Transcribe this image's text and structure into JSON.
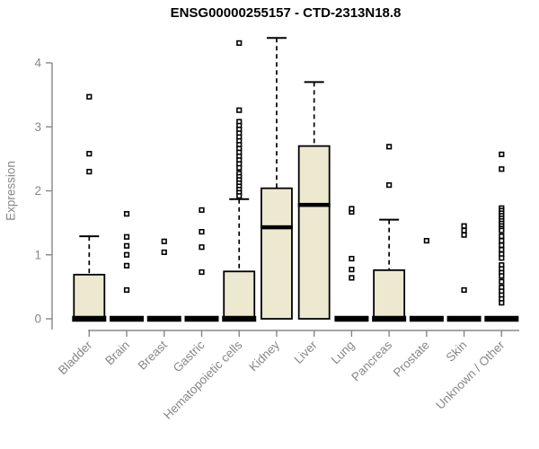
{
  "chart_data": {
    "type": "boxplot",
    "title": "ENSG00000255157 - CTD-2313N18.8",
    "ylabel": "Expression",
    "xlabel": "",
    "ylim": [
      0,
      4.4
    ],
    "yticks": [
      0,
      1,
      2,
      3,
      4
    ],
    "grid": false,
    "legend": false,
    "colors": {
      "background": "#ffffff",
      "box_fill": "#ede8d0",
      "box_stroke": "#000000",
      "median": "#000000",
      "whisker": "#000000",
      "outlier_stroke": "#000000",
      "outlier_fill": "#ffffff",
      "axis": "#878787",
      "tick_label": "#878787",
      "title": "#000000"
    },
    "categories": [
      "Bladder",
      "Brain",
      "Breast",
      "Gastric",
      "Hematopoietic cells",
      "Kidney",
      "Liver",
      "Lung",
      "Pancreas",
      "Prostate",
      "Skin",
      "Unknown / Other"
    ],
    "boxes": [
      {
        "category": "Bladder",
        "q1": 0,
        "median": 0,
        "q3": 0.69,
        "whisker_low": 0,
        "whisker_high": 1.29,
        "outliers": [
          2.3,
          2.58,
          3.47
        ]
      },
      {
        "category": "Brain",
        "q1": 0,
        "median": 0,
        "q3": 0,
        "whisker_low": 0,
        "whisker_high": 0,
        "outliers": [
          0.45,
          0.83,
          1.0,
          1.14,
          1.28,
          1.64
        ]
      },
      {
        "category": "Breast",
        "q1": 0,
        "median": 0,
        "q3": 0,
        "whisker_low": 0,
        "whisker_high": 0,
        "outliers": [
          1.04,
          1.21
        ]
      },
      {
        "category": "Gastric",
        "q1": 0,
        "median": 0,
        "q3": 0,
        "whisker_low": 0,
        "whisker_high": 0,
        "outliers": [
          0.73,
          1.12,
          1.36,
          1.7
        ]
      },
      {
        "category": "Hematopoietic cells",
        "q1": 0,
        "median": 0,
        "q3": 0.74,
        "whisker_low": 0,
        "whisker_high": 1.87,
        "outliers": [
          4.31,
          3.26,
          3.08,
          3.02,
          2.96,
          2.9,
          2.84,
          2.78,
          2.72,
          2.66,
          2.6,
          2.54,
          2.48,
          2.42,
          2.36,
          2.27,
          2.22,
          2.17,
          2.12,
          2.07,
          2.02,
          1.97,
          1.92
        ]
      },
      {
        "category": "Kidney",
        "q1": 0,
        "median": 1.43,
        "q3": 2.04,
        "whisker_low": 0,
        "whisker_high": 4.39,
        "outliers": []
      },
      {
        "category": "Liver",
        "q1": 0,
        "median": 1.78,
        "q3": 2.7,
        "whisker_low": 0,
        "whisker_high": 3.7,
        "outliers": []
      },
      {
        "category": "Lung",
        "q1": 0,
        "median": 0,
        "q3": 0,
        "whisker_low": 0,
        "whisker_high": 0,
        "outliers": [
          0.64,
          0.77,
          0.94,
          1.67,
          1.72
        ]
      },
      {
        "category": "Pancreas",
        "q1": 0,
        "median": 0,
        "q3": 0.76,
        "whisker_low": 0,
        "whisker_high": 1.55,
        "outliers": [
          2.09,
          2.69
        ]
      },
      {
        "category": "Prostate",
        "q1": 0,
        "median": 0,
        "q3": 0,
        "whisker_low": 0,
        "whisker_high": 0,
        "outliers": [
          1.22
        ]
      },
      {
        "category": "Skin",
        "q1": 0,
        "median": 0,
        "q3": 0,
        "whisker_low": 0,
        "whisker_high": 0,
        "outliers": [
          0.45,
          1.31,
          1.38,
          1.45
        ]
      },
      {
        "category": "Unknown / Other",
        "q1": 0,
        "median": 0,
        "q3": 0,
        "whisker_low": 0,
        "whisker_high": 0,
        "outliers": [
          2.57,
          2.34,
          1.73,
          1.69,
          1.65,
          1.61,
          1.57,
          1.53,
          1.49,
          1.45,
          1.41,
          1.38,
          1.29,
          1.22,
          1.15,
          1.08,
          1.01,
          0.95,
          0.84,
          0.78,
          0.72,
          0.67,
          0.58,
          0.49,
          0.43,
          0.37,
          0.31,
          0.25
        ]
      }
    ]
  }
}
